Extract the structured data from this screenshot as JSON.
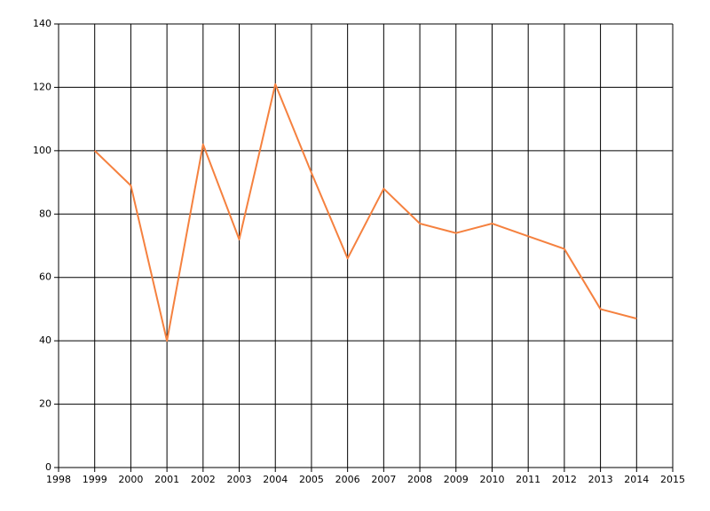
{
  "chart_data": {
    "type": "line",
    "x": [
      1999,
      2000,
      2001,
      2002,
      2003,
      2004,
      2005,
      2006,
      2007,
      2008,
      2009,
      2010,
      2011,
      2012,
      2013,
      2014
    ],
    "values": [
      100,
      89,
      40,
      102,
      72,
      121,
      93,
      66,
      88,
      77,
      74,
      77,
      73,
      69,
      50,
      47
    ],
    "color": "#f5813f",
    "xlim": [
      1998,
      2015
    ],
    "xticks": [
      1998,
      1999,
      2000,
      2001,
      2002,
      2003,
      2004,
      2005,
      2006,
      2007,
      2008,
      2009,
      2010,
      2011,
      2012,
      2013,
      2014,
      2015
    ],
    "ylim": [
      0,
      140
    ],
    "yticks": [
      0,
      20,
      40,
      60,
      80,
      100,
      120,
      140
    ],
    "grid": true
  }
}
